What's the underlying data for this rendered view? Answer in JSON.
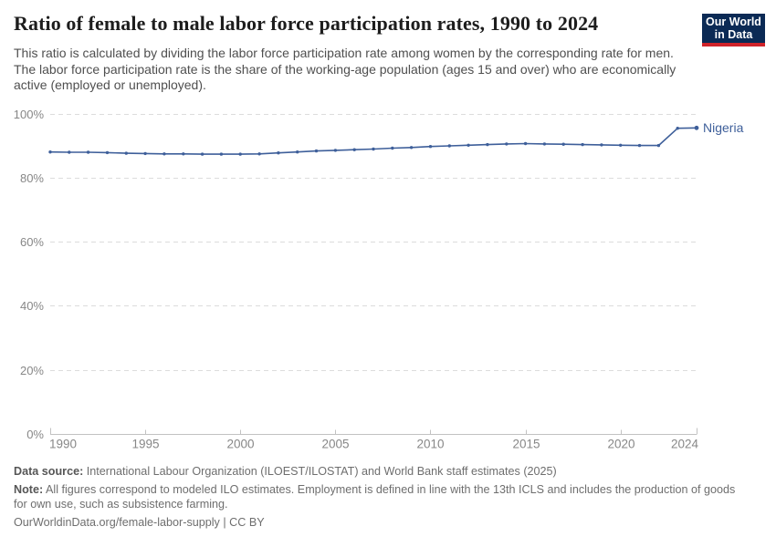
{
  "header": {
    "title": "Ratio of female to male labor force participation rates, 1990 to 2024",
    "subtitle": "This ratio is calculated by dividing the labor force participation rate among women by the corresponding rate for men. The labor force participation rate is the share of the working-age population (ages 15 and over) who are economically active (employed or unemployed)."
  },
  "logo": {
    "line1": "Our World",
    "line2": "in Data",
    "bg_color": "#0b2a55",
    "accent_color": "#d0232a"
  },
  "chart_data": {
    "type": "line",
    "title": "Ratio of female to male labor force participation rates, 1990 to 2024",
    "xlabel": "",
    "ylabel": "",
    "xlim": [
      1990,
      2024
    ],
    "ylim": [
      0,
      100
    ],
    "grid": "horizontal-dashed",
    "grid_color": "#dcdcdc",
    "axis_color": "#c2c2c2",
    "axis_label_color": "#878787",
    "legend_position": "end-of-line-label",
    "yticks": [
      {
        "value": 0,
        "label": "0%"
      },
      {
        "value": 20,
        "label": "20%"
      },
      {
        "value": 40,
        "label": "40%"
      },
      {
        "value": 60,
        "label": "60%"
      },
      {
        "value": 80,
        "label": "80%"
      },
      {
        "value": 100,
        "label": "100%"
      }
    ],
    "xticks": [
      {
        "value": 1990,
        "label": "1990"
      },
      {
        "value": 1995,
        "label": "1995"
      },
      {
        "value": 2000,
        "label": "2000"
      },
      {
        "value": 2005,
        "label": "2005"
      },
      {
        "value": 2010,
        "label": "2010"
      },
      {
        "value": 2015,
        "label": "2015"
      },
      {
        "value": 2020,
        "label": "2020"
      },
      {
        "value": 2024,
        "label": "2024"
      }
    ],
    "series": [
      {
        "name": "Nigeria",
        "color": "#3e5f9a",
        "x": [
          1990,
          1991,
          1992,
          1993,
          1994,
          1995,
          1996,
          1997,
          1998,
          1999,
          2000,
          2001,
          2002,
          2003,
          2004,
          2005,
          2006,
          2007,
          2008,
          2009,
          2010,
          2011,
          2012,
          2013,
          2014,
          2015,
          2016,
          2017,
          2018,
          2019,
          2020,
          2021,
          2022,
          2023,
          2024
        ],
        "values": [
          88.0,
          87.9,
          87.9,
          87.8,
          87.6,
          87.5,
          87.4,
          87.4,
          87.3,
          87.3,
          87.3,
          87.4,
          87.7,
          88.0,
          88.3,
          88.5,
          88.7,
          88.9,
          89.2,
          89.4,
          89.7,
          89.9,
          90.1,
          90.3,
          90.5,
          90.6,
          90.5,
          90.4,
          90.3,
          90.2,
          90.1,
          90.0,
          90.0,
          95.4,
          95.5
        ]
      }
    ]
  },
  "footer": {
    "source_label": "Data source:",
    "source_text": "International Labour Organization (ILOEST/ILOSTAT) and World Bank staff estimates (2025)",
    "note_label": "Note:",
    "note_text": "All figures correspond to modeled ILO estimates. Employment is defined in line with the 13th ICLS and includes the production of goods for own use, such as subsistence farming.",
    "url": "OurWorldinData.org/female-labor-supply",
    "separator": "|",
    "license": "CC BY"
  }
}
